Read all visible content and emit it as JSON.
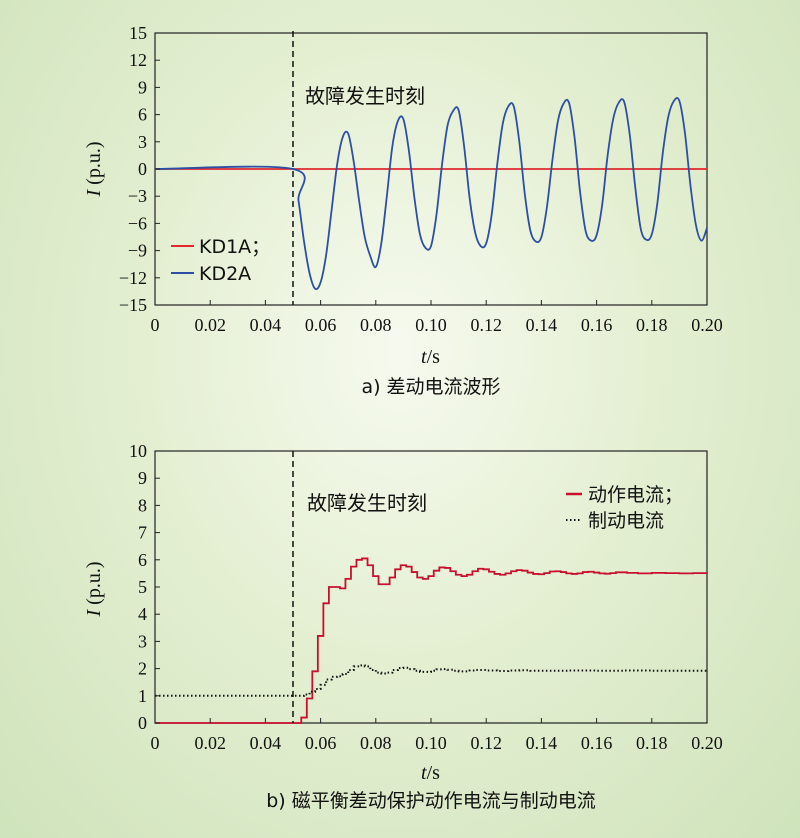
{
  "chart_data": [
    {
      "id": "a",
      "type": "line",
      "caption": "a) 差动电流波形",
      "xlabel_italic": "t",
      "xlabel_unit": "/s",
      "ylabel_italic": "I",
      "ylabel_unit": " (p.u.)",
      "xlim": [
        0,
        0.2
      ],
      "ylim": [
        -15,
        15
      ],
      "xticks": [
        0,
        0.02,
        0.04,
        0.06,
        0.08,
        0.1,
        0.12,
        0.14,
        0.16,
        0.18,
        0.2
      ],
      "xtick_labels": [
        "0",
        "0.02",
        "0.04",
        "0.06",
        "0.08",
        "0.10",
        "0.12",
        "0.14",
        "0.16",
        "0.18",
        "0.20"
      ],
      "yticks": [
        -15,
        -12,
        -9,
        -6,
        -3,
        0,
        3,
        6,
        9,
        12,
        15
      ],
      "ytick_labels": [
        "−15",
        "−12",
        "−9",
        "−6",
        "−3",
        "0",
        "3",
        "6",
        "9",
        "12",
        "15"
      ],
      "fault_time": 0.05,
      "annotation": "故障发生时刻",
      "legend_position": "bottom-left",
      "series": [
        {
          "name": "KD1A；",
          "color": "#e0282d",
          "style": "solid",
          "x": [
            0,
            0.2
          ],
          "y": [
            0,
            0
          ]
        },
        {
          "name": "KD2A",
          "color": "#2c4fa3",
          "style": "solid",
          "x": [
            0,
            0.05,
            0.052,
            0.054,
            0.056,
            0.058,
            0.06,
            0.062,
            0.064,
            0.066,
            0.068,
            0.07,
            0.072,
            0.074,
            0.076,
            0.078,
            0.08,
            0.082,
            0.084,
            0.086,
            0.088,
            0.09,
            0.092,
            0.094,
            0.096,
            0.098,
            0.1,
            0.102,
            0.104,
            0.106,
            0.108,
            0.11,
            0.112,
            0.114,
            0.116,
            0.118,
            0.12,
            0.122,
            0.124,
            0.126,
            0.128,
            0.13,
            0.132,
            0.134,
            0.136,
            0.138,
            0.14,
            0.142,
            0.144,
            0.146,
            0.148,
            0.15,
            0.152,
            0.154,
            0.156,
            0.158,
            0.16,
            0.162,
            0.164,
            0.166,
            0.168,
            0.17,
            0.172,
            0.174,
            0.176,
            0.178,
            0.18,
            0.182,
            0.184,
            0.186,
            0.188,
            0.19,
            0.192,
            0.194,
            0.196,
            0.198,
            0.2
          ],
          "y": [
            0,
            0,
            -3.5,
            -8.0,
            -11.5,
            -13.2,
            -12.5,
            -9.5,
            -4.5,
            0.5,
            3.5,
            3.9,
            0.8,
            -3.6,
            -7.5,
            -9.6,
            -10.8,
            -8.2,
            -3.0,
            2.5,
            5.3,
            5.5,
            2.0,
            -3.2,
            -7.2,
            -8.7,
            -8.5,
            -5.0,
            0.5,
            4.8,
            6.4,
            6.5,
            2.5,
            -3.2,
            -7.0,
            -8.5,
            -8.2,
            -5.0,
            0.5,
            5.0,
            6.9,
            6.9,
            3.0,
            -2.8,
            -6.8,
            -8.0,
            -7.5,
            -4.2,
            1.0,
            5.3,
            7.2,
            7.3,
            3.5,
            -2.5,
            -6.8,
            -7.9,
            -7.3,
            -4.0,
            1.5,
            5.5,
            7.3,
            7.4,
            3.8,
            -2.0,
            -6.6,
            -7.8,
            -7.2,
            -3.8,
            1.8,
            5.8,
            7.5,
            7.5,
            4.0,
            -1.8,
            -6.2,
            -7.9,
            -6.5
          ]
        }
      ]
    },
    {
      "id": "b",
      "type": "line",
      "caption": "b) 磁平衡差动保护动作电流与制动电流",
      "xlabel_italic": "t",
      "xlabel_unit": "/s",
      "ylabel_italic": "I",
      "ylabel_unit": " (p.u.)",
      "xlim": [
        0,
        0.2
      ],
      "ylim": [
        0,
        10
      ],
      "xticks": [
        0,
        0.02,
        0.04,
        0.06,
        0.08,
        0.1,
        0.12,
        0.14,
        0.16,
        0.18,
        0.2
      ],
      "xtick_labels": [
        "0",
        "0.02",
        "0.04",
        "0.06",
        "0.08",
        "0.10",
        "0.12",
        "0.14",
        "0.16",
        "0.18",
        "0.20"
      ],
      "yticks": [
        0,
        1,
        2,
        3,
        4,
        5,
        6,
        7,
        8,
        9,
        10
      ],
      "ytick_labels": [
        "0",
        "1",
        "2",
        "3",
        "4",
        "5",
        "6",
        "7",
        "8",
        "9",
        "10"
      ],
      "fault_time": 0.05,
      "annotation": "故障发生时刻",
      "legend_position": "top-right",
      "series": [
        {
          "name": "动作电流；",
          "color": "#c8102e",
          "style": "solid",
          "x": [
            0,
            0.051,
            0.053,
            0.055,
            0.057,
            0.059,
            0.061,
            0.063,
            0.065,
            0.067,
            0.069,
            0.071,
            0.073,
            0.075,
            0.077,
            0.079,
            0.081,
            0.083,
            0.085,
            0.087,
            0.089,
            0.091,
            0.093,
            0.095,
            0.097,
            0.099,
            0.101,
            0.103,
            0.105,
            0.107,
            0.109,
            0.111,
            0.113,
            0.115,
            0.117,
            0.119,
            0.121,
            0.123,
            0.125,
            0.127,
            0.129,
            0.131,
            0.133,
            0.135,
            0.137,
            0.139,
            0.141,
            0.143,
            0.145,
            0.147,
            0.149,
            0.151,
            0.153,
            0.155,
            0.157,
            0.159,
            0.161,
            0.163,
            0.165,
            0.167,
            0.169,
            0.171,
            0.175,
            0.18,
            0.185,
            0.19,
            0.195,
            0.2
          ],
          "y": [
            0,
            0,
            0.2,
            0.9,
            1.9,
            3.2,
            4.4,
            5.0,
            5.0,
            4.95,
            5.3,
            5.75,
            6.0,
            6.05,
            5.8,
            5.4,
            5.1,
            5.1,
            5.35,
            5.65,
            5.8,
            5.75,
            5.55,
            5.35,
            5.3,
            5.4,
            5.6,
            5.72,
            5.7,
            5.58,
            5.45,
            5.4,
            5.45,
            5.58,
            5.67,
            5.65,
            5.56,
            5.48,
            5.45,
            5.5,
            5.58,
            5.62,
            5.6,
            5.53,
            5.48,
            5.47,
            5.51,
            5.57,
            5.58,
            5.55,
            5.5,
            5.48,
            5.5,
            5.55,
            5.56,
            5.53,
            5.5,
            5.49,
            5.51,
            5.54,
            5.54,
            5.52,
            5.5,
            5.52,
            5.51,
            5.5,
            5.51,
            5.5
          ]
        },
        {
          "name": "制动电流",
          "color": "#111111",
          "style": "dotted",
          "x": [
            0,
            0.052,
            0.054,
            0.056,
            0.058,
            0.06,
            0.062,
            0.064,
            0.066,
            0.068,
            0.07,
            0.072,
            0.074,
            0.076,
            0.078,
            0.08,
            0.082,
            0.084,
            0.086,
            0.088,
            0.09,
            0.092,
            0.094,
            0.096,
            0.098,
            0.1,
            0.102,
            0.104,
            0.106,
            0.108,
            0.11,
            0.112,
            0.114,
            0.116,
            0.118,
            0.12,
            0.124,
            0.128,
            0.132,
            0.136,
            0.14,
            0.15,
            0.16,
            0.17,
            0.18,
            0.19,
            0.2
          ],
          "y": [
            1.0,
            1.0,
            1.05,
            1.15,
            1.25,
            1.4,
            1.6,
            1.7,
            1.72,
            1.8,
            1.95,
            2.08,
            2.12,
            2.08,
            1.95,
            1.85,
            1.82,
            1.85,
            1.95,
            2.02,
            2.03,
            1.98,
            1.92,
            1.88,
            1.88,
            1.92,
            1.97,
            1.98,
            1.96,
            1.92,
            1.9,
            1.9,
            1.93,
            1.95,
            1.95,
            1.93,
            1.91,
            1.93,
            1.94,
            1.92,
            1.92,
            1.93,
            1.92,
            1.93,
            1.92,
            1.92,
            1.92
          ]
        }
      ]
    }
  ]
}
